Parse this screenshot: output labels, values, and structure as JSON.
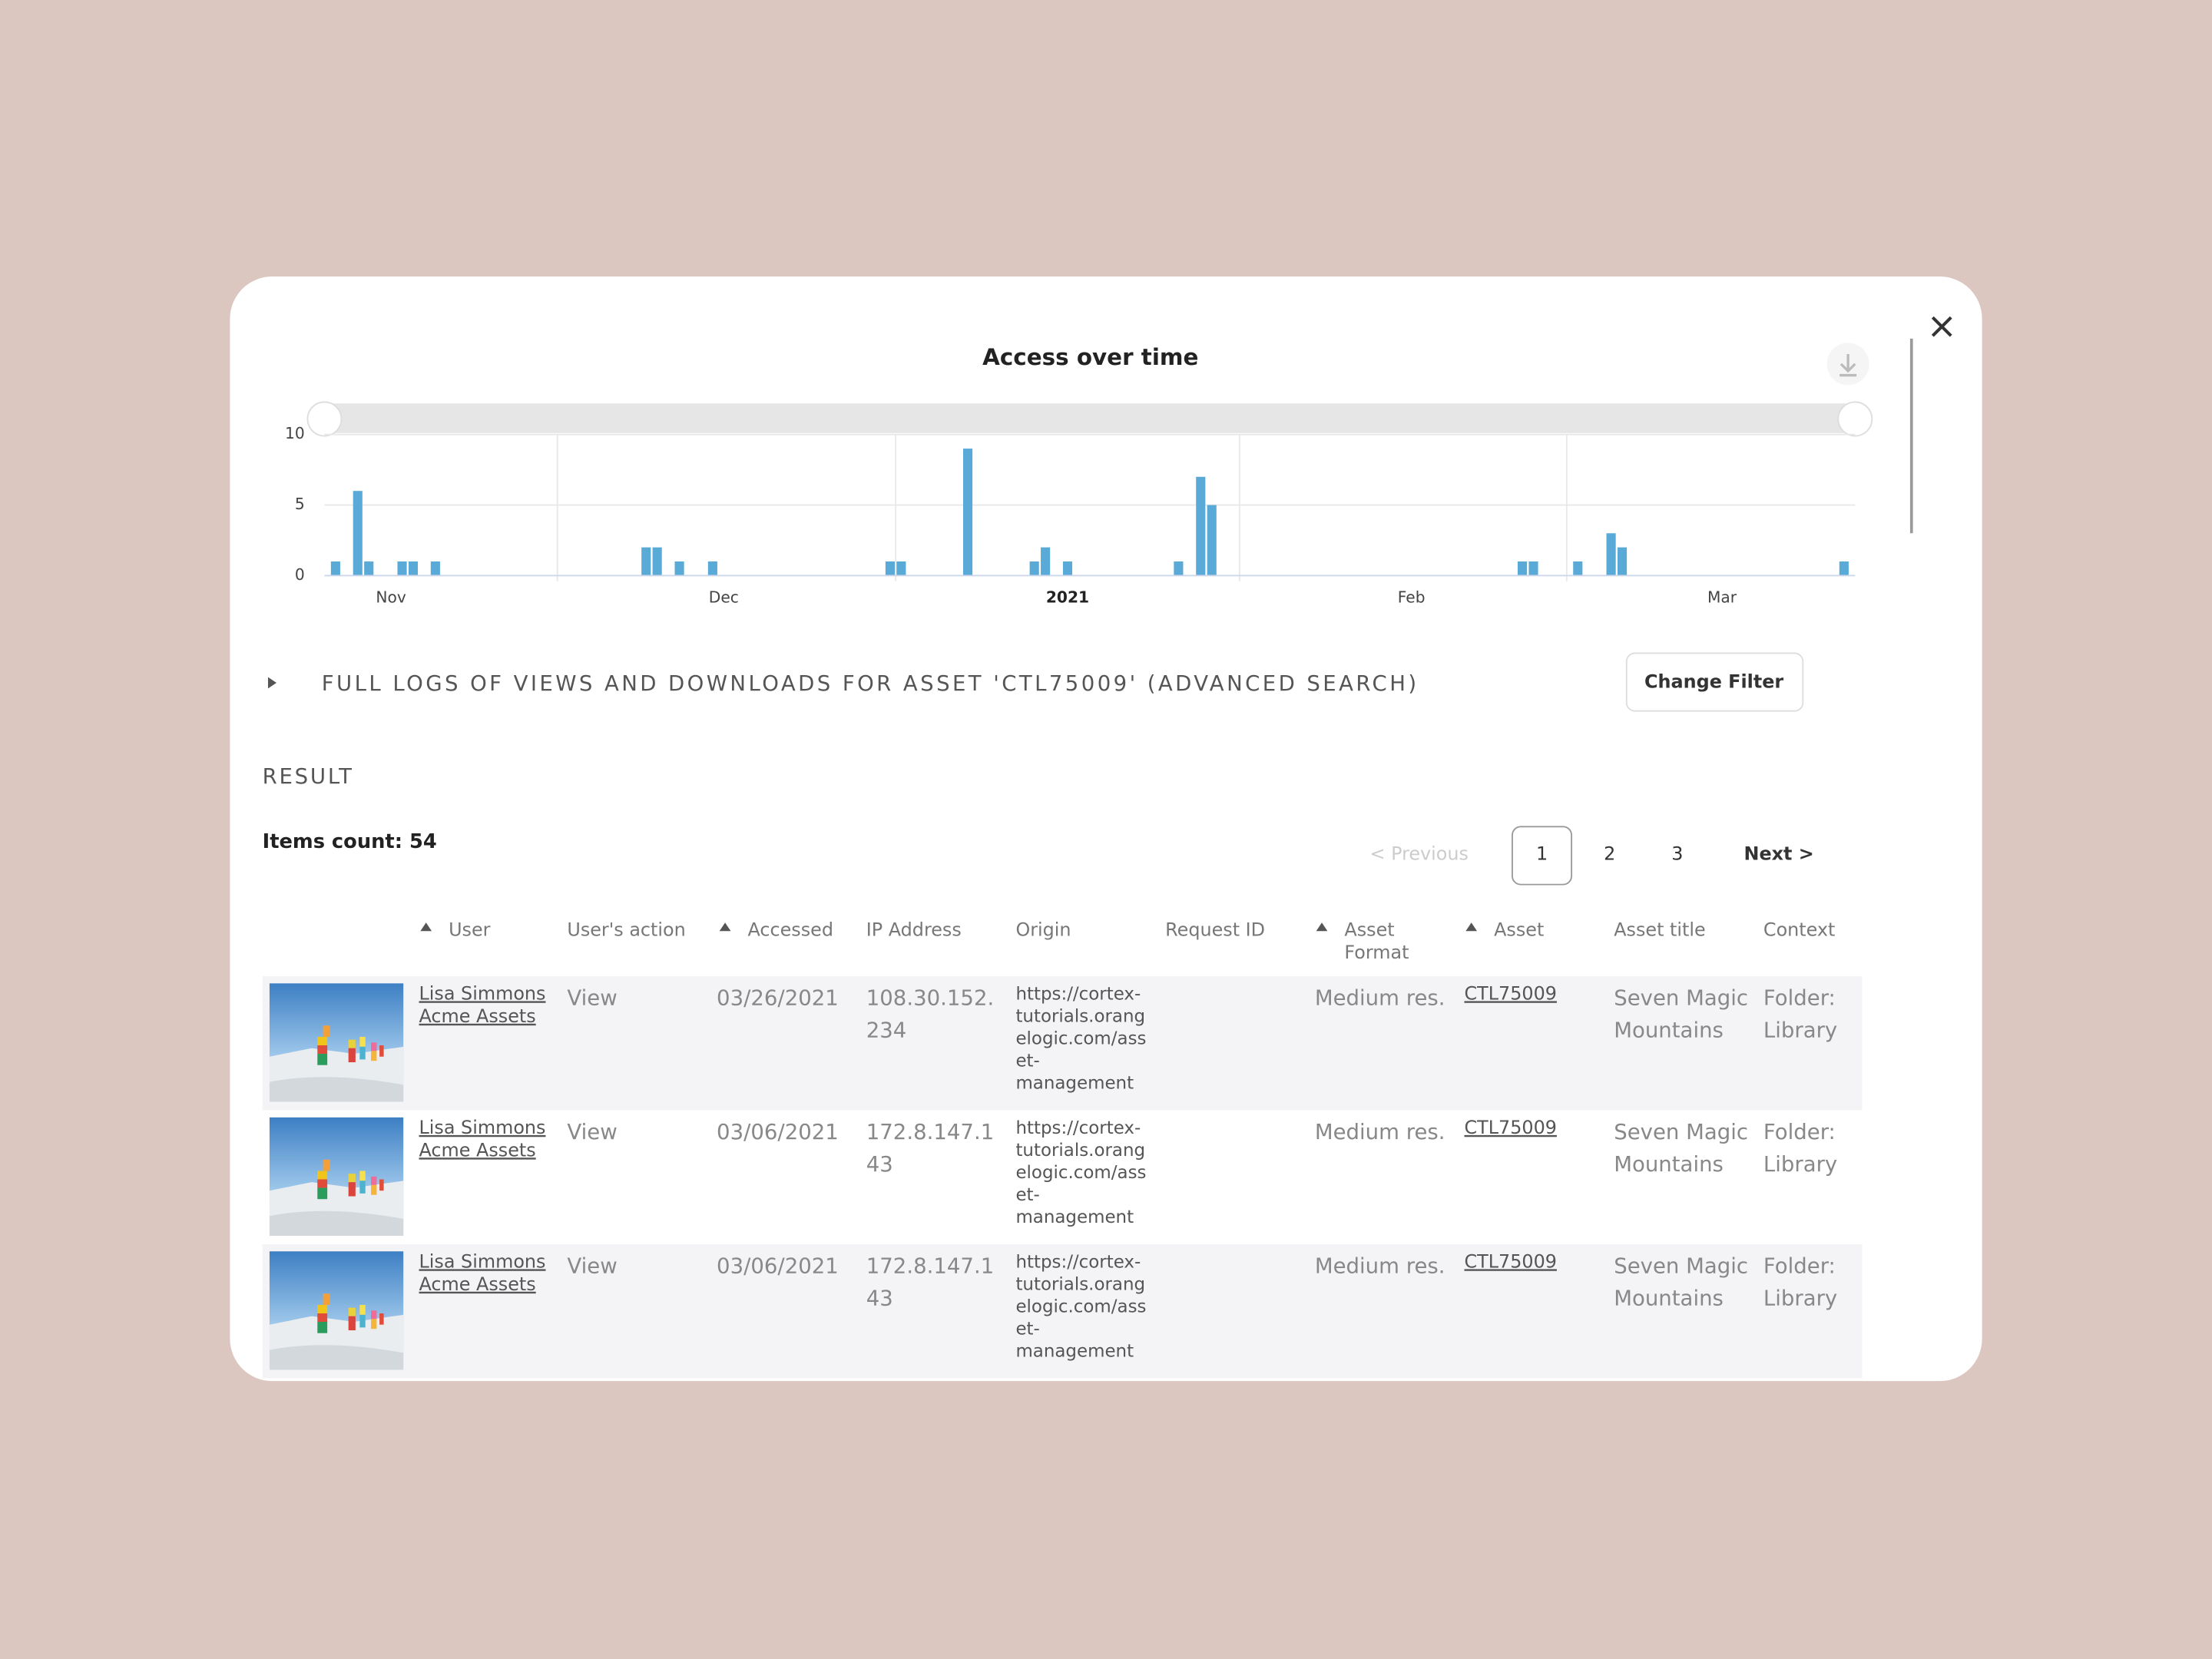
{
  "chart_data": {
    "type": "bar",
    "title": "Access over time",
    "x": [
      10,
      12,
      13,
      16,
      17,
      19,
      38,
      39,
      41,
      44,
      60,
      61,
      67,
      73,
      74,
      76,
      86,
      88,
      89,
      117,
      118,
      122,
      125,
      126,
      146
    ],
    "values": [
      1,
      6,
      1,
      1,
      1,
      1,
      2,
      2,
      1,
      1,
      1,
      1,
      9,
      1,
      2,
      1,
      1,
      7,
      5,
      1,
      1,
      1,
      3,
      2,
      1
    ],
    "color": "#5aaad8",
    "xlim": [
      9,
      147
    ],
    "xticks": [
      {
        "value": 15,
        "label": "Nov"
      },
      {
        "value": 45,
        "label": "Dec"
      },
      {
        "value": 76,
        "label": "2021"
      },
      {
        "value": 107,
        "label": "Feb"
      },
      {
        "value": 135,
        "label": "Mar"
      }
    ],
    "ylim": [
      0,
      10
    ],
    "yticks": [
      0,
      5,
      10
    ],
    "grid": true
  },
  "filter": {
    "title": "FULL LOGS OF VIEWS AND DOWNLOADS FOR ASSET 'CTL75009' (ADVANCED SEARCH)",
    "button": "Change Filter"
  },
  "result": {
    "label": "RESULT",
    "items_count": "Items count: 54"
  },
  "pagination": {
    "previous": "< Previous",
    "pages": [
      "1",
      "2",
      "3"
    ],
    "next": "Next >"
  },
  "table": {
    "columns": [
      [
        "User"
      ],
      [
        "User's action"
      ],
      [
        "Accessed"
      ],
      [
        "IP Address"
      ],
      [
        "Origin"
      ],
      [
        "Request ID"
      ],
      [
        "Asset",
        "Format"
      ],
      [
        "Asset"
      ],
      [
        "Asset title"
      ],
      [
        "Context"
      ]
    ],
    "rows": [
      {
        "user": [
          "Lisa Simmons",
          "Acme Assets"
        ],
        "action": "View",
        "accessed": "03/26/2021",
        "ip": [
          "108.30.152.",
          "234"
        ],
        "origin": [
          "https://cortex-",
          "tutorials.orang",
          "elogic.com/ass",
          "et-",
          "management"
        ],
        "format": "Medium res.",
        "asset": "CTL75009",
        "title": [
          "Seven Magic",
          "Mountains"
        ],
        "context": [
          "Folder:",
          "Library"
        ]
      },
      {
        "user": [
          "Lisa Simmons",
          "Acme Assets"
        ],
        "action": "View",
        "accessed": "03/06/2021",
        "ip": [
          "172.8.147.1",
          "43"
        ],
        "origin": [
          "https://cortex-",
          "tutorials.orang",
          "elogic.com/ass",
          "et-",
          "management"
        ],
        "format": "Medium res.",
        "asset": "CTL75009",
        "title": [
          "Seven Magic",
          "Mountains"
        ],
        "context": [
          "Folder:",
          "Library"
        ]
      },
      {
        "user": [
          "Lisa Simmons",
          "Acme Assets"
        ],
        "action": "View",
        "accessed": "03/06/2021",
        "ip": [
          "172.8.147.1",
          "43"
        ],
        "origin": [
          "https://cortex-",
          "tutorials.orang",
          "elogic.com/ass",
          "et-",
          "management"
        ],
        "format": "Medium res.",
        "asset": "CTL75009",
        "title": [
          "Seven Magic",
          "Mountains"
        ],
        "context": [
          "Folder:",
          "Library"
        ]
      }
    ]
  }
}
